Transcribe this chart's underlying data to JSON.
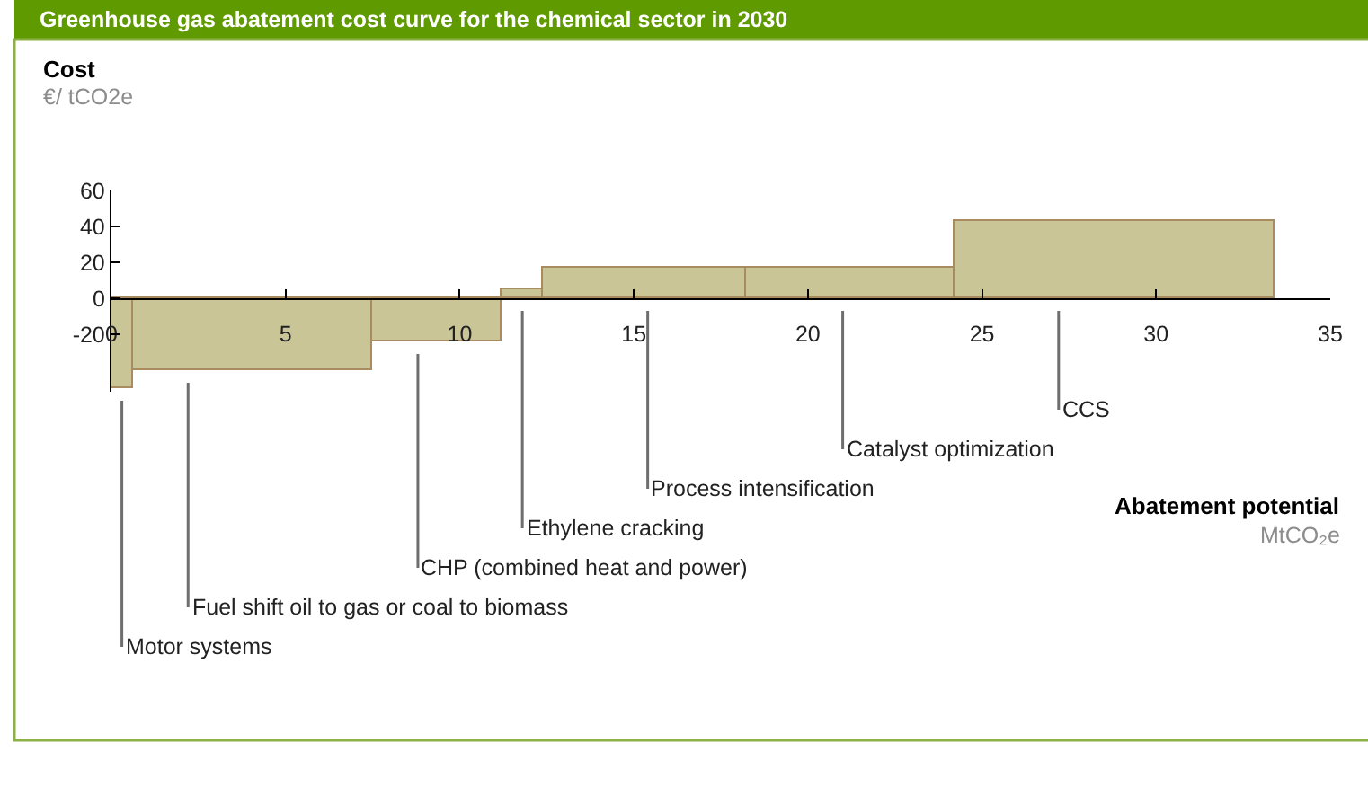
{
  "chart_data": {
    "type": "histogram",
    "title": "Greenhouse gas abatement cost curve for the chemical sector in 2030",
    "xlabel": "Abatement potential\nMtCO₂e",
    "ylabel": "Cost\n€/ tCO2e",
    "xlim": [
      0,
      35
    ],
    "xticks": [
      0,
      5,
      10,
      15,
      20,
      25,
      30,
      35
    ],
    "ylim": [
      -52,
      60
    ],
    "yticks": [
      -20,
      0,
      20,
      40,
      60
    ],
    "bins": [
      0,
      0.6,
      7.5,
      11.2,
      12.4,
      18.2,
      24.2,
      33.4
    ],
    "values": [
      -50,
      -40,
      -24,
      5,
      17,
      17,
      43
    ],
    "color": "#c9c597",
    "annotations": [
      {
        "text": "Motor systems",
        "x": 0.3,
        "y": -50
      },
      {
        "text": "Fuel shift oil to gas or coal to biomass",
        "x": 2.2,
        "y": -40
      },
      {
        "text": "CHP (combined heat and power)",
        "x": 8.8,
        "y": -24
      },
      {
        "text": "Ethylene cracking",
        "x": 11.8,
        "y": 0
      },
      {
        "text": "Process intensification",
        "x": 15.4,
        "y": 0
      },
      {
        "text": "Catalyst optimization",
        "x": 21,
        "y": 0
      },
      {
        "text": "CCS",
        "x": 27.2,
        "y": 0
      }
    ]
  }
}
